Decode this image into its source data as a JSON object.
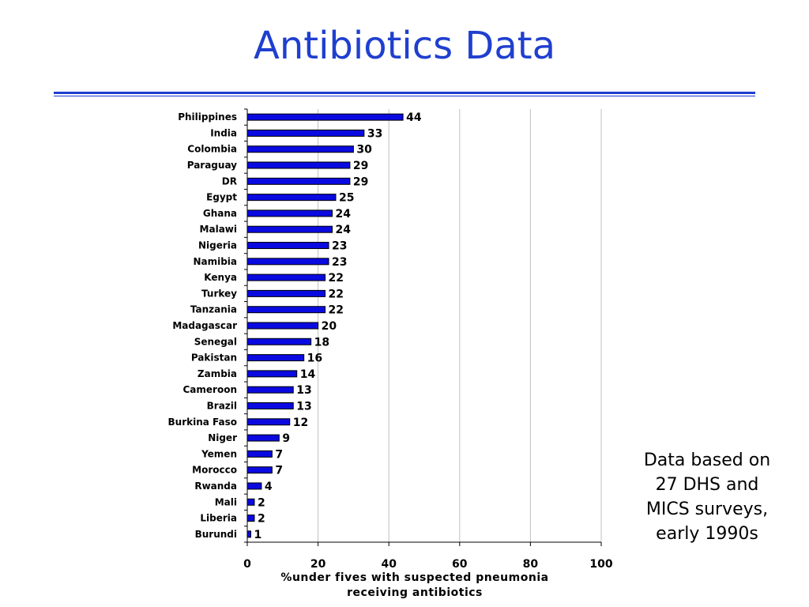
{
  "title": "Antibiotics Data",
  "side_note": [
    "Data based on",
    "27 DHS and",
    "MICS surveys,",
    "early 1990s"
  ],
  "colors": {
    "title": "#1f3fcf",
    "bar": "#0a0ae0",
    "grid": "#c0c0c0"
  },
  "chart_data": {
    "type": "bar",
    "orientation": "horizontal",
    "categories": [
      "Philippines",
      "India",
      "Colombia",
      "Paraguay",
      "DR",
      "Egypt",
      "Ghana",
      "Malawi",
      "Nigeria",
      "Namibia",
      "Kenya",
      "Turkey",
      "Tanzania",
      "Madagascar",
      "Senegal",
      "Pakistan",
      "Zambia",
      "Cameroon",
      "Brazil",
      "Burkina Faso",
      "Niger",
      "Yemen",
      "Morocco",
      "Rwanda",
      "Mali",
      "Liberia",
      "Burundi"
    ],
    "values": [
      44,
      33,
      30,
      29,
      29,
      25,
      24,
      24,
      23,
      23,
      22,
      22,
      22,
      20,
      18,
      16,
      14,
      13,
      13,
      12,
      9,
      7,
      7,
      4,
      2,
      2,
      1
    ],
    "xlabel": [
      "%under fives with suspected pneumonia",
      "receiving antibiotics"
    ],
    "xlim": [
      0,
      100
    ],
    "xticks": [
      0,
      20,
      40,
      60,
      80,
      100
    ],
    "grid": "vertical"
  }
}
